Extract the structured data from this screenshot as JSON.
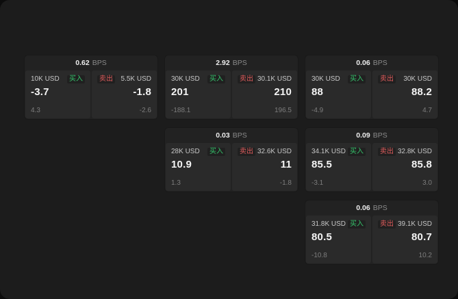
{
  "labels": {
    "bps": "BPS",
    "buy": "买入",
    "sell": "卖出"
  },
  "colors": {
    "buy": "#35c46b",
    "sell": "#e05c5c",
    "background": "#1c1c1c",
    "card": "#222222",
    "panel": "#2a2a2a"
  },
  "cards": [
    {
      "bps": "0.62",
      "buy_amount": "10K USD",
      "buy_value": "-3.7",
      "buy_sub": "4.3",
      "sell_amount": "5.5K USD",
      "sell_value": "-1.8",
      "sell_sub": "-2.6"
    },
    {
      "bps": "2.92",
      "buy_amount": "30K USD",
      "buy_value": "201",
      "buy_sub": "-188.1",
      "sell_amount": "30.1K USD",
      "sell_value": "210",
      "sell_sub": "196.5"
    },
    {
      "bps": "0.06",
      "buy_amount": "30K USD",
      "buy_value": "88",
      "buy_sub": "-4.9",
      "sell_amount": "30K USD",
      "sell_value": "88.2",
      "sell_sub": "4.7"
    },
    {
      "bps": "0.03",
      "buy_amount": "28K USD",
      "buy_value": "10.9",
      "buy_sub": "1.3",
      "sell_amount": "32.6K USD",
      "sell_value": "11",
      "sell_sub": "-1.8"
    },
    {
      "bps": "0.09",
      "buy_amount": "34.1K USD",
      "buy_value": "85.5",
      "buy_sub": "-3.1",
      "sell_amount": "32.8K USD",
      "sell_value": "85.8",
      "sell_sub": "3.0"
    },
    {
      "bps": "0.06",
      "buy_amount": "31.8K USD",
      "buy_value": "80.5",
      "buy_sub": "-10.8",
      "sell_amount": "39.1K USD",
      "sell_value": "80.7",
      "sell_sub": "10.2"
    }
  ]
}
